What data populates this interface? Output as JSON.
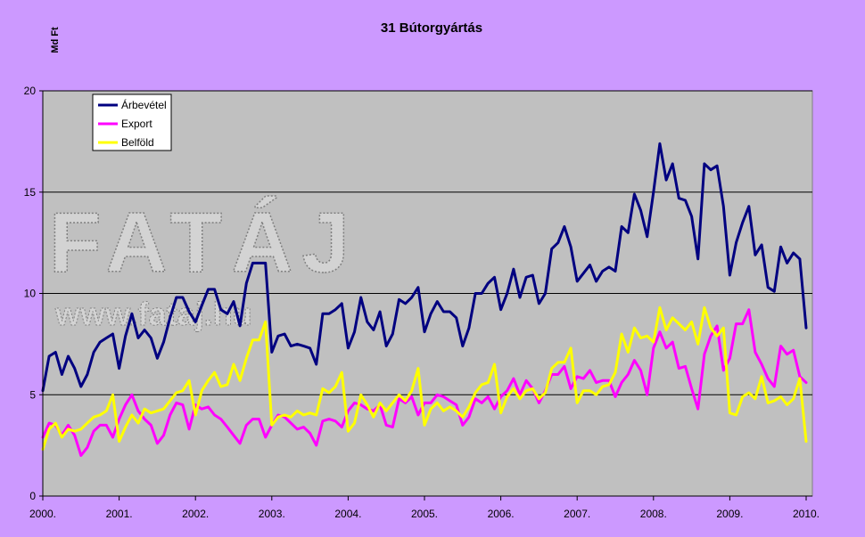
{
  "chart_data": {
    "type": "line",
    "title": "31 Bútorgyártás",
    "ylabel": "Md Ft",
    "xlabel": "",
    "ylim": [
      0,
      20
    ],
    "yticks": [
      "0",
      "5",
      "10",
      "15",
      "20"
    ],
    "xticks": [
      "2000.",
      "2001.",
      "2002.",
      "2003.",
      "2004.",
      "2005.",
      "2006.",
      "2007.",
      "2008.",
      "2009.",
      "2010."
    ],
    "grid": "horizontal",
    "legend_position": "top-left",
    "watermark": [
      "FATÁJ",
      "www.fataj.hu"
    ],
    "series": [
      {
        "name": "Árbevétel",
        "color": "#000080",
        "values": [
          5.2,
          6.9,
          7.1,
          6.0,
          6.9,
          6.3,
          5.4,
          6.0,
          7.1,
          7.6,
          7.8,
          8.0,
          6.3,
          7.9,
          9.0,
          7.8,
          8.2,
          7.8,
          6.8,
          7.6,
          8.8,
          9.8,
          9.8,
          9.1,
          8.6,
          9.4,
          10.2,
          10.2,
          9.2,
          9.0,
          9.6,
          8.4,
          10.5,
          11.5,
          11.5,
          11.5,
          7.1,
          7.9,
          8.0,
          7.4,
          7.5,
          7.4,
          7.3,
          6.5,
          9.0,
          9.0,
          9.2,
          9.5,
          7.3,
          8.1,
          9.8,
          8.6,
          8.2,
          9.1,
          7.4,
          8.0,
          9.7,
          9.5,
          9.8,
          10.3,
          8.1,
          9.0,
          9.6,
          9.1,
          9.1,
          8.8,
          7.4,
          8.3,
          10.0,
          10.0,
          10.5,
          10.8,
          9.2,
          10.0,
          11.2,
          9.8,
          10.8,
          10.9,
          9.5,
          10.0,
          12.2,
          12.5,
          13.3,
          12.3,
          10.6,
          11.0,
          11.4,
          10.6,
          11.1,
          11.3,
          11.1,
          13.3,
          13.0,
          14.9,
          14.1,
          12.8,
          15.0,
          17.4,
          15.6,
          16.4,
          14.7,
          14.6,
          13.8,
          11.7,
          16.4,
          16.1,
          16.3,
          14.3,
          10.9,
          12.5,
          13.5,
          14.3,
          11.9,
          12.4,
          10.3,
          10.1,
          12.3,
          11.5,
          12.0,
          11.7,
          8.3
        ]
      },
      {
        "name": "Export",
        "color": "#ff00ff",
        "values": [
          2.9,
          3.6,
          3.5,
          3.0,
          3.5,
          3.0,
          2.0,
          2.4,
          3.2,
          3.5,
          3.5,
          2.9,
          3.8,
          4.5,
          5.0,
          4.2,
          3.8,
          3.5,
          2.6,
          3.0,
          4.0,
          4.6,
          4.5,
          3.3,
          4.5,
          4.3,
          4.4,
          4.0,
          3.8,
          3.4,
          3.0,
          2.6,
          3.5,
          3.8,
          3.8,
          2.9,
          3.5,
          4.0,
          3.9,
          3.6,
          3.3,
          3.4,
          3.1,
          2.5,
          3.7,
          3.8,
          3.7,
          3.4,
          4.2,
          4.6,
          4.5,
          4.3,
          4.2,
          4.5,
          3.5,
          3.4,
          4.8,
          4.6,
          4.9,
          4.0,
          4.6,
          4.6,
          5.0,
          4.9,
          4.7,
          4.5,
          3.5,
          3.9,
          4.8,
          4.6,
          4.9,
          4.3,
          4.9,
          5.2,
          5.8,
          5.0,
          5.7,
          5.3,
          4.6,
          5.2,
          6.0,
          6.0,
          6.4,
          5.3,
          5.9,
          5.8,
          6.2,
          5.6,
          5.7,
          5.7,
          4.9,
          5.6,
          6.0,
          6.7,
          6.2,
          5.0,
          7.3,
          8.1,
          7.3,
          7.6,
          6.3,
          6.4,
          5.3,
          4.3,
          7.0,
          7.9,
          8.4,
          6.2,
          6.8,
          8.5,
          8.5,
          9.2,
          7.1,
          6.5,
          5.8,
          5.4,
          7.4,
          7.0,
          7.2,
          5.9,
          5.6
        ]
      },
      {
        "name": "Belföld",
        "color": "#ffff00",
        "values": [
          2.3,
          3.3,
          3.6,
          2.9,
          3.3,
          3.2,
          3.3,
          3.6,
          3.9,
          4.0,
          4.2,
          5.0,
          2.7,
          3.4,
          4.0,
          3.6,
          4.3,
          4.1,
          4.2,
          4.3,
          4.7,
          5.1,
          5.2,
          5.7,
          4.0,
          5.2,
          5.7,
          6.1,
          5.4,
          5.5,
          6.5,
          5.7,
          6.8,
          7.7,
          7.7,
          8.6,
          3.5,
          3.9,
          4.0,
          3.9,
          4.2,
          4.0,
          4.1,
          4.0,
          5.3,
          5.1,
          5.4,
          6.1,
          3.2,
          3.6,
          5.0,
          4.5,
          3.9,
          4.6,
          4.2,
          4.6,
          5.0,
          4.7,
          5.2,
          6.3,
          3.5,
          4.3,
          4.6,
          4.2,
          4.4,
          4.2,
          3.9,
          4.4,
          5.1,
          5.5,
          5.6,
          6.5,
          4.1,
          4.9,
          5.3,
          4.8,
          5.2,
          5.3,
          4.8,
          5.1,
          6.3,
          6.6,
          6.6,
          7.3,
          4.6,
          5.2,
          5.2,
          5.0,
          5.4,
          5.5,
          6.1,
          8.0,
          7.1,
          8.3,
          7.8,
          7.9,
          7.6,
          9.3,
          8.2,
          8.8,
          8.5,
          8.2,
          8.6,
          7.5,
          9.3,
          8.3,
          7.9,
          8.3,
          4.1,
          4.0,
          4.9,
          5.1,
          4.8,
          5.9,
          4.6,
          4.7,
          4.9,
          4.5,
          4.8,
          5.8,
          2.7
        ]
      }
    ]
  }
}
